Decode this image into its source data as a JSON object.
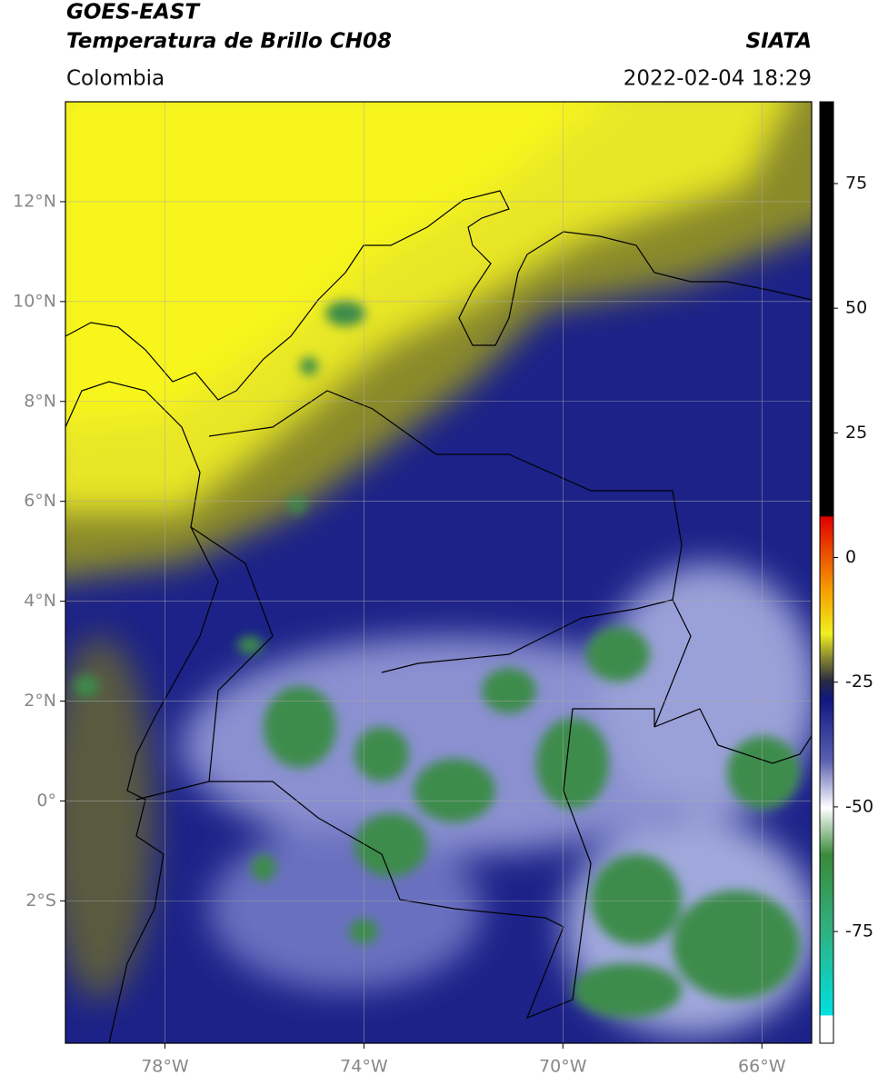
{
  "header": {
    "title": "GOES-EAST",
    "subtitle": "Temperatura de Brillo CH08",
    "region": "Colombia",
    "source": "SIATA",
    "datetime": "2022-02-04 18:29"
  },
  "map": {
    "xlim": [
      -80,
      -65
    ],
    "ylim": [
      -4.85,
      14
    ],
    "xticks": [
      {
        "value": -78,
        "label": "78°W"
      },
      {
        "value": -74,
        "label": "74°W"
      },
      {
        "value": -70,
        "label": "70°W"
      },
      {
        "value": -66,
        "label": "66°W"
      }
    ],
    "yticks": [
      {
        "value": 12,
        "label": "12°N"
      },
      {
        "value": 10,
        "label": "10°N"
      },
      {
        "value": 8,
        "label": "8°N"
      },
      {
        "value": 6,
        "label": "6°N"
      },
      {
        "value": 4,
        "label": "4°N"
      },
      {
        "value": 2,
        "label": "2°N"
      },
      {
        "value": 0,
        "label": "0°"
      },
      {
        "value": -2,
        "label": "2°S"
      }
    ],
    "grid": true
  },
  "colorbar": {
    "clim": [
      -97.4,
      91.4
    ],
    "ticks": [
      75,
      50,
      25,
      0,
      -25,
      -50,
      -75
    ]
  }
}
